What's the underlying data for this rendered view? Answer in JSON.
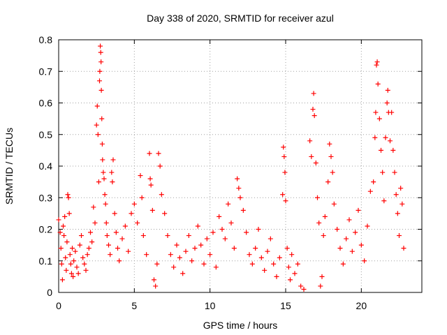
{
  "chart_data": {
    "type": "scatter",
    "title": "Day 338 of 2020, SRMTID for receiver azul",
    "xlabel": "GPS time / hours",
    "ylabel": "SRMTID / TECUs",
    "xlim": [
      0,
      24
    ],
    "ylim": [
      0,
      0.8
    ],
    "x_ticks": [
      0,
      5,
      10,
      15,
      20
    ],
    "x_tick_labels": [
      "0",
      "5",
      "10",
      "15",
      "20"
    ],
    "y_ticks": [
      0,
      0.1,
      0.2,
      0.3,
      0.4,
      0.5,
      0.6,
      0.7,
      0.8
    ],
    "y_tick_labels": [
      "0",
      "0.1",
      "0.2",
      "0.3",
      "0.4",
      "0.5",
      "0.6",
      "0.7",
      "0.8"
    ],
    "grid": true,
    "marker": "+",
    "marker_color": "#ff0000",
    "series": [
      {
        "name": "SRMTID",
        "points": [
          [
            0.0,
            0.23
          ],
          [
            0.1,
            0.19
          ],
          [
            0.15,
            0.14
          ],
          [
            0.2,
            0.09
          ],
          [
            0.25,
            0.04
          ],
          [
            0.3,
            0.21
          ],
          [
            0.35,
            0.18
          ],
          [
            0.4,
            0.24
          ],
          [
            0.45,
            0.11
          ],
          [
            0.5,
            0.07
          ],
          [
            0.55,
            0.16
          ],
          [
            0.6,
            0.31
          ],
          [
            0.65,
            0.3
          ],
          [
            0.7,
            0.25
          ],
          [
            0.75,
            0.12
          ],
          [
            0.8,
            0.09
          ],
          [
            0.85,
            0.06
          ],
          [
            0.9,
            0.14
          ],
          [
            0.95,
            0.05
          ],
          [
            1.0,
            0.1
          ],
          [
            1.1,
            0.13
          ],
          [
            1.2,
            0.08
          ],
          [
            1.3,
            0.06
          ],
          [
            1.4,
            0.15
          ],
          [
            1.5,
            0.18
          ],
          [
            1.6,
            0.11
          ],
          [
            1.7,
            0.09
          ],
          [
            1.8,
            0.07
          ],
          [
            1.9,
            0.12
          ],
          [
            2.0,
            0.14
          ],
          [
            2.1,
            0.19
          ],
          [
            2.2,
            0.16
          ],
          [
            2.3,
            0.27
          ],
          [
            2.4,
            0.22
          ],
          [
            2.5,
            0.53
          ],
          [
            2.55,
            0.59
          ],
          [
            2.6,
            0.5
          ],
          [
            2.65,
            0.35
          ],
          [
            2.7,
            0.67
          ],
          [
            2.72,
            0.7
          ],
          [
            2.75,
            0.78
          ],
          [
            2.78,
            0.76
          ],
          [
            2.8,
            0.73
          ],
          [
            2.82,
            0.64
          ],
          [
            2.85,
            0.55
          ],
          [
            2.88,
            0.47
          ],
          [
            2.9,
            0.42
          ],
          [
            2.95,
            0.38
          ],
          [
            3.0,
            0.36
          ],
          [
            3.05,
            0.31
          ],
          [
            3.1,
            0.28
          ],
          [
            3.15,
            0.22
          ],
          [
            3.2,
            0.18
          ],
          [
            3.3,
            0.15
          ],
          [
            3.4,
            0.12
          ],
          [
            3.5,
            0.38
          ],
          [
            3.55,
            0.35
          ],
          [
            3.6,
            0.42
          ],
          [
            3.7,
            0.25
          ],
          [
            3.8,
            0.19
          ],
          [
            3.9,
            0.14
          ],
          [
            4.0,
            0.1
          ],
          [
            4.2,
            0.17
          ],
          [
            4.4,
            0.21
          ],
          [
            4.6,
            0.13
          ],
          [
            4.8,
            0.25
          ],
          [
            5.0,
            0.28
          ],
          [
            5.2,
            0.22
          ],
          [
            5.4,
            0.37
          ],
          [
            5.5,
            0.3
          ],
          [
            5.6,
            0.18
          ],
          [
            5.8,
            0.12
          ],
          [
            6.0,
            0.44
          ],
          [
            6.05,
            0.36
          ],
          [
            6.1,
            0.34
          ],
          [
            6.2,
            0.26
          ],
          [
            6.3,
            0.04
          ],
          [
            6.4,
            0.02
          ],
          [
            6.5,
            0.09
          ],
          [
            6.6,
            0.44
          ],
          [
            6.7,
            0.4
          ],
          [
            6.8,
            0.31
          ],
          [
            7.0,
            0.25
          ],
          [
            7.2,
            0.18
          ],
          [
            7.4,
            0.12
          ],
          [
            7.6,
            0.08
          ],
          [
            7.8,
            0.15
          ],
          [
            8.0,
            0.11
          ],
          [
            8.2,
            0.06
          ],
          [
            8.4,
            0.13
          ],
          [
            8.6,
            0.18
          ],
          [
            8.8,
            0.1
          ],
          [
            9.0,
            0.14
          ],
          [
            9.2,
            0.21
          ],
          [
            9.4,
            0.15
          ],
          [
            9.6,
            0.09
          ],
          [
            9.8,
            0.17
          ],
          [
            10.0,
            0.12
          ],
          [
            10.2,
            0.19
          ],
          [
            10.4,
            0.08
          ],
          [
            10.6,
            0.24
          ],
          [
            10.8,
            0.2
          ],
          [
            11.0,
            0.17
          ],
          [
            11.2,
            0.28
          ],
          [
            11.4,
            0.22
          ],
          [
            11.6,
            0.14
          ],
          [
            11.8,
            0.36
          ],
          [
            11.9,
            0.33
          ],
          [
            12.0,
            0.3
          ],
          [
            12.2,
            0.26
          ],
          [
            12.4,
            0.19
          ],
          [
            12.6,
            0.12
          ],
          [
            12.8,
            0.09
          ],
          [
            13.0,
            0.14
          ],
          [
            13.2,
            0.2
          ],
          [
            13.4,
            0.11
          ],
          [
            13.6,
            0.07
          ],
          [
            13.8,
            0.13
          ],
          [
            14.0,
            0.17
          ],
          [
            14.2,
            0.09
          ],
          [
            14.4,
            0.05
          ],
          [
            14.6,
            0.11
          ],
          [
            14.8,
            0.31
          ],
          [
            14.85,
            0.46
          ],
          [
            14.9,
            0.43
          ],
          [
            14.95,
            0.38
          ],
          [
            15.0,
            0.29
          ],
          [
            15.1,
            0.14
          ],
          [
            15.2,
            0.08
          ],
          [
            15.3,
            0.04
          ],
          [
            15.4,
            0.12
          ],
          [
            15.6,
            0.06
          ],
          [
            15.8,
            0.09
          ],
          [
            16.0,
            0.02
          ],
          [
            16.2,
            0.01
          ],
          [
            16.6,
            0.48
          ],
          [
            16.7,
            0.43
          ],
          [
            16.8,
            0.58
          ],
          [
            16.85,
            0.63
          ],
          [
            16.9,
            0.56
          ],
          [
            17.0,
            0.41
          ],
          [
            17.1,
            0.3
          ],
          [
            17.2,
            0.22
          ],
          [
            17.3,
            0.02
          ],
          [
            17.4,
            0.05
          ],
          [
            17.5,
            0.18
          ],
          [
            17.6,
            0.24
          ],
          [
            17.8,
            0.35
          ],
          [
            17.9,
            0.47
          ],
          [
            18.0,
            0.43
          ],
          [
            18.1,
            0.38
          ],
          [
            18.2,
            0.28
          ],
          [
            18.4,
            0.2
          ],
          [
            18.6,
            0.14
          ],
          [
            18.8,
            0.09
          ],
          [
            19.0,
            0.17
          ],
          [
            19.2,
            0.23
          ],
          [
            19.4,
            0.13
          ],
          [
            19.6,
            0.19
          ],
          [
            19.8,
            0.26
          ],
          [
            20.0,
            0.15
          ],
          [
            20.2,
            0.1
          ],
          [
            20.4,
            0.21
          ],
          [
            20.6,
            0.32
          ],
          [
            20.8,
            0.35
          ],
          [
            20.9,
            0.49
          ],
          [
            20.95,
            0.57
          ],
          [
            21.0,
            0.72
          ],
          [
            21.05,
            0.73
          ],
          [
            21.1,
            0.66
          ],
          [
            21.2,
            0.55
          ],
          [
            21.3,
            0.45
          ],
          [
            21.4,
            0.38
          ],
          [
            21.5,
            0.29
          ],
          [
            21.6,
            0.49
          ],
          [
            21.7,
            0.6
          ],
          [
            21.75,
            0.64
          ],
          [
            21.8,
            0.57
          ],
          [
            21.9,
            0.48
          ],
          [
            22.0,
            0.57
          ],
          [
            22.1,
            0.45
          ],
          [
            22.2,
            0.38
          ],
          [
            22.3,
            0.31
          ],
          [
            22.4,
            0.25
          ],
          [
            22.5,
            0.18
          ],
          [
            22.6,
            0.33
          ],
          [
            22.7,
            0.28
          ],
          [
            22.8,
            0.14
          ]
        ]
      }
    ]
  }
}
